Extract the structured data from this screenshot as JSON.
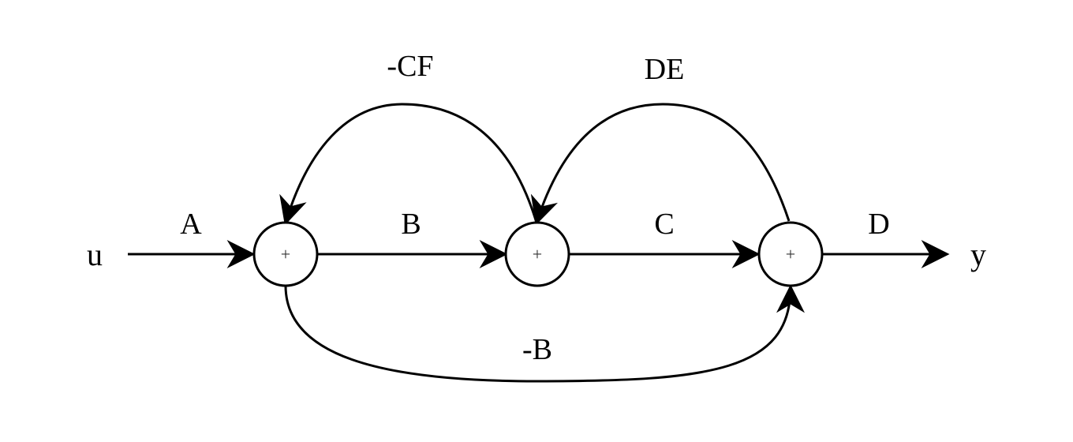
{
  "terminals": {
    "input": "u",
    "output": "y"
  },
  "nodes": {
    "sum1": "+",
    "sum2": "+",
    "sum3": "+"
  },
  "gains": {
    "forward_a": "A",
    "forward_b": "B",
    "forward_c": "C",
    "forward_d": "D",
    "feedback_cf": "-CF",
    "feedback_de": "DE",
    "feedforward_b": "-B"
  }
}
